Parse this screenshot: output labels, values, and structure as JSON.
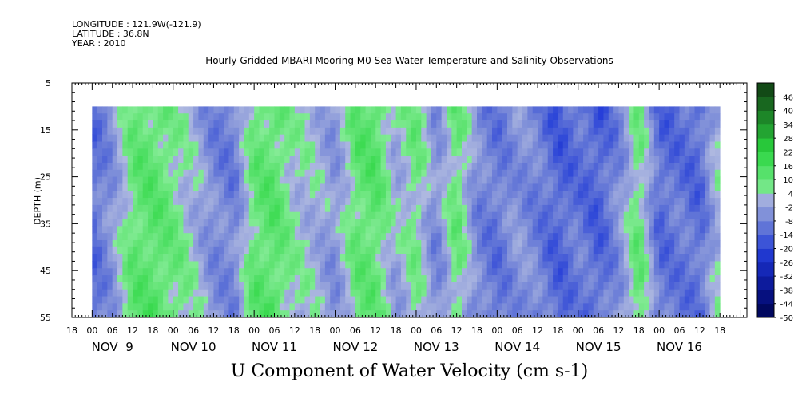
{
  "header": {
    "longitude": "LONGITUDE : 121.9W(-121.9)",
    "latitude": "LATITUDE : 36.8N",
    "year": "YEAR : 2010"
  },
  "chart_data": {
    "type": "heatmap",
    "title": "Hourly Gridded MBARI Mooring M0 Sea Water Temperature and Salinity Observations",
    "xlabel": "U Component of Water Velocity (cm s-1)",
    "ylabel": "DEPTH (m)",
    "ylim": [
      5,
      55
    ],
    "y_inverted": true,
    "y_ticks": [
      5,
      15,
      25,
      35,
      45,
      55
    ],
    "x_range_hours": [
      "NOV 8 18:00",
      "NOV 16 20:00"
    ],
    "x_hour_labels": [
      "18",
      "00",
      "06",
      "12",
      "18",
      "00",
      "06",
      "12",
      "18",
      "00",
      "06",
      "12",
      "18",
      "00",
      "06",
      "12",
      "18",
      "00",
      "06",
      "12",
      "18",
      "00",
      "06",
      "12",
      "18",
      "00",
      "06",
      "12",
      "18",
      "00",
      "06",
      "12",
      "18"
    ],
    "x_day_labels": [
      "NOV  9",
      "NOV 10",
      "NOV 11",
      "NOV 12",
      "NOV 13",
      "NOV 14",
      "NOV 15",
      "NOV 16"
    ],
    "data_time_range": [
      "NOV 9 00:00",
      "NOV 16 18:00"
    ],
    "data_depth_range": [
      10,
      55
    ],
    "colorbar": {
      "levels": [
        -50,
        -44,
        -38,
        -32,
        -26,
        -20,
        -14,
        -8,
        -2,
        4,
        10,
        16,
        22,
        28,
        34,
        40,
        46
      ],
      "labels": [
        "46",
        "40",
        "34",
        "28",
        "22",
        "16",
        "10",
        "4",
        "-2",
        "-8",
        "-14",
        "-20",
        "-26",
        "-32",
        "-38",
        "-44",
        "-50"
      ]
    },
    "time_depth_means": {
      "day_hours": [
        0,
        6,
        12,
        18,
        24,
        30,
        36,
        42,
        48,
        54,
        60,
        66,
        72,
        78,
        84,
        90,
        96,
        102,
        108,
        114,
        120,
        126,
        132,
        138,
        144,
        150,
        156,
        162,
        168,
        174,
        180,
        186
      ],
      "u_value": [
        -12,
        -4,
        10,
        12,
        8,
        2,
        -6,
        -8,
        10,
        12,
        4,
        2,
        -4,
        10,
        12,
        0,
        8,
        -6,
        10,
        -6,
        -10,
        -4,
        -8,
        -14,
        -10,
        -14,
        -6,
        10,
        -12,
        -10,
        -12,
        4
      ]
    }
  },
  "colors": {
    "background": "#ffffff",
    "no_data": "#ffffff"
  }
}
